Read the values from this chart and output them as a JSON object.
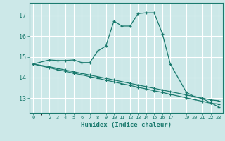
{
  "title": "",
  "xlabel": "Humidex (Indice chaleur)",
  "bg_color": "#cce8e8",
  "line_color": "#1a7a6e",
  "grid_color": "#ffffff",
  "x_ticks": [
    0,
    2,
    3,
    4,
    5,
    6,
    7,
    8,
    9,
    10,
    11,
    12,
    13,
    14,
    15,
    16,
    17,
    19,
    20,
    21,
    22,
    23
  ],
  "y_ticks": [
    13,
    14,
    15,
    16,
    17
  ],
  "ylim": [
    12.3,
    17.6
  ],
  "xlim": [
    -0.5,
    23.5
  ],
  "curve1_x": [
    0,
    2,
    3,
    4,
    5,
    6,
    7,
    8,
    9,
    10,
    11,
    12,
    13,
    14,
    15,
    16,
    17,
    19,
    20,
    21,
    22,
    23
  ],
  "curve1_y": [
    14.65,
    14.85,
    14.82,
    14.82,
    14.85,
    14.72,
    14.72,
    15.28,
    15.52,
    16.72,
    16.48,
    16.48,
    17.08,
    17.12,
    17.12,
    16.12,
    14.65,
    13.28,
    13.08,
    12.98,
    12.78,
    12.58
  ],
  "curve2_x": [
    0,
    2,
    3,
    4,
    5,
    6,
    7,
    8,
    9,
    10,
    11,
    12,
    13,
    14,
    15,
    16,
    17,
    19,
    20,
    21,
    22,
    23
  ],
  "curve2_y": [
    14.65,
    14.52,
    14.44,
    14.36,
    14.28,
    14.2,
    14.12,
    14.04,
    13.96,
    13.88,
    13.8,
    13.72,
    13.64,
    13.56,
    13.48,
    13.4,
    13.32,
    13.16,
    13.08,
    13.0,
    12.92,
    12.88
  ],
  "curve3_x": [
    0,
    2,
    3,
    4,
    5,
    6,
    7,
    8,
    9,
    10,
    11,
    12,
    13,
    14,
    15,
    16,
    17,
    19,
    20,
    21,
    22,
    23
  ],
  "curve3_y": [
    14.65,
    14.47,
    14.38,
    14.3,
    14.21,
    14.13,
    14.04,
    13.96,
    13.87,
    13.79,
    13.7,
    13.62,
    13.53,
    13.45,
    13.36,
    13.28,
    13.19,
    13.02,
    12.93,
    12.85,
    12.76,
    12.72
  ]
}
